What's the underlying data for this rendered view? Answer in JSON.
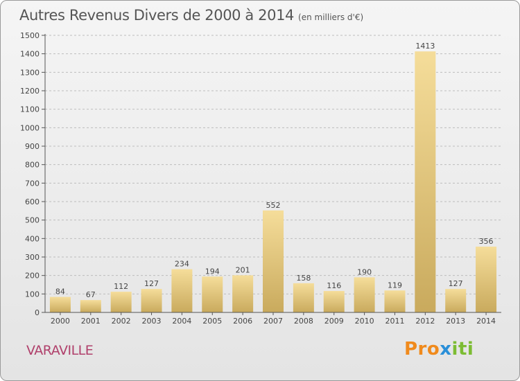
{
  "header": {
    "title": "Autres Revenus Divers de 2000 à 2014",
    "subtitle": "(en milliers d'€)"
  },
  "footer": {
    "commune": "VARAVILLE",
    "logo": {
      "p1": "Pro",
      "p2": "x",
      "p3": "iti"
    }
  },
  "chart_data": {
    "type": "bar",
    "title": "Autres Revenus Divers de 2000 à 2014",
    "subtitle": "(en milliers d'€)",
    "categories": [
      "2000",
      "2001",
      "2002",
      "2003",
      "2004",
      "2005",
      "2006",
      "2007",
      "2008",
      "2009",
      "2010",
      "2011",
      "2012",
      "2013",
      "2014"
    ],
    "values": [
      84,
      67,
      112,
      127,
      234,
      194,
      201,
      552,
      158,
      116,
      190,
      119,
      1413,
      127,
      356
    ],
    "ylim": [
      0,
      1500
    ],
    "yticks": [
      0,
      100,
      200,
      300,
      400,
      500,
      600,
      700,
      800,
      900,
      1000,
      1100,
      1200,
      1300,
      1400,
      1500
    ],
    "grid": true,
    "bar_color_light": "#f5dd9a",
    "bar_color_dark": "#c9aa5d",
    "grid_color": "#bdbdbd",
    "label_color": "#444444"
  }
}
